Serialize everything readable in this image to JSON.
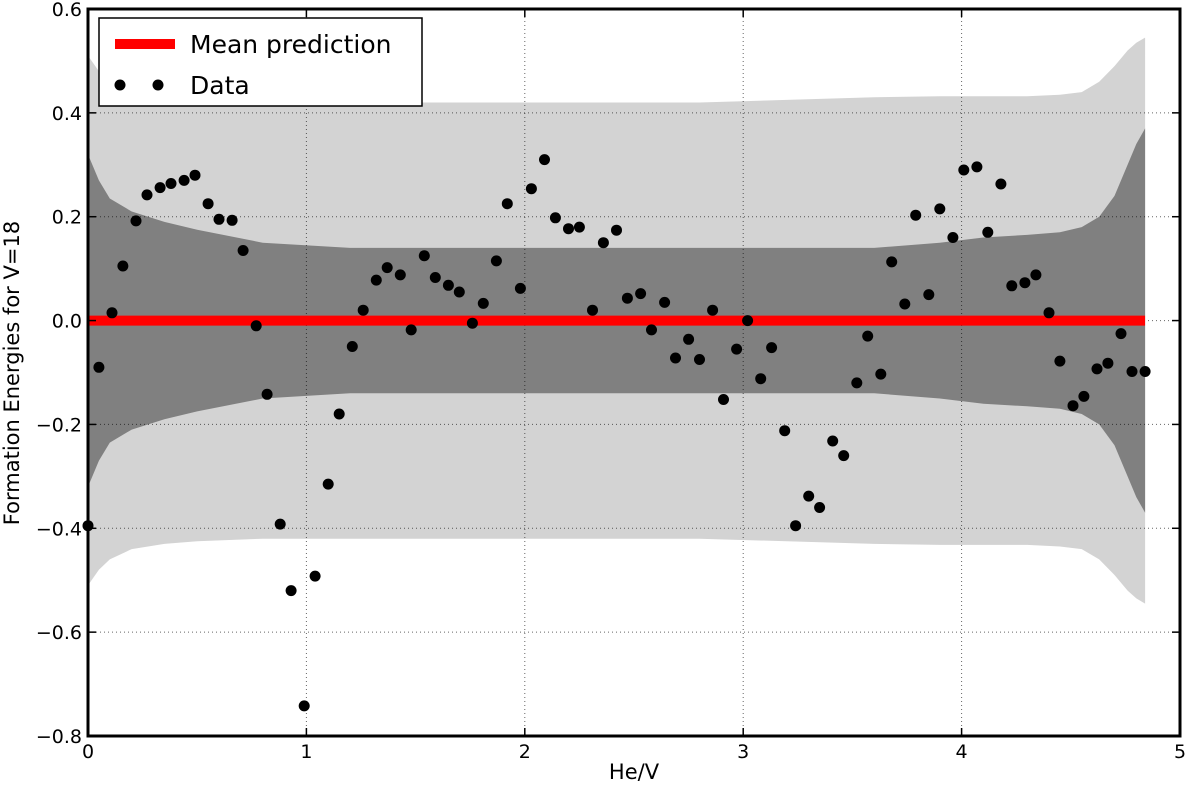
{
  "chart_data": {
    "type": "scatter",
    "title": "",
    "xlabel": "He/V",
    "ylabel": "Formation Energies for V=18",
    "xlim": [
      0,
      5
    ],
    "ylim": [
      -0.8,
      0.6
    ],
    "xticks": [
      0,
      1,
      2,
      3,
      4,
      5
    ],
    "yticks": [
      -0.8,
      -0.6,
      -0.4,
      -0.2,
      0.0,
      0.2,
      0.4,
      0.6
    ],
    "xtick_labels": [
      "0",
      "1",
      "2",
      "3",
      "4",
      "5"
    ],
    "ytick_labels": [
      "−0.8",
      "−0.6",
      "−0.4",
      "−0.2",
      "0.0",
      "0.2",
      "0.4",
      "0.6"
    ],
    "grid": true,
    "legend_position": "top-left",
    "colors": {
      "mean": "#ff0000",
      "data": "#000000",
      "band_inner": "#808080",
      "band_outer": "#d3d3d3"
    },
    "series": [
      {
        "name": "Mean prediction",
        "kind": "line",
        "x": [
          0,
          4.84
        ],
        "y": [
          0.0,
          0.0
        ]
      },
      {
        "name": "Data",
        "kind": "scatter",
        "x": [
          0.0,
          0.05,
          0.11,
          0.16,
          0.22,
          0.27,
          0.33,
          0.38,
          0.44,
          0.49,
          0.55,
          0.6,
          0.66,
          0.71,
          0.77,
          0.82,
          0.88,
          0.93,
          0.99,
          1.04,
          1.1,
          1.15,
          1.21,
          1.26,
          1.32,
          1.37,
          1.43,
          1.48,
          1.54,
          1.59,
          1.65,
          1.7,
          1.76,
          1.81,
          1.87,
          1.92,
          1.98,
          2.03,
          2.09,
          2.14,
          2.2,
          2.25,
          2.31,
          2.36,
          2.42,
          2.47,
          2.53,
          2.58,
          2.64,
          2.69,
          2.75,
          2.8,
          2.86,
          2.91,
          2.97,
          3.02,
          3.08,
          3.13,
          3.19,
          3.24,
          3.3,
          3.35,
          3.41,
          3.46,
          3.52,
          3.57,
          3.63,
          3.68,
          3.74,
          3.79,
          3.85,
          3.9,
          3.96,
          4.01,
          4.07,
          4.12,
          4.18,
          4.23,
          4.29,
          4.34,
          4.4,
          4.45,
          4.51,
          4.56,
          4.62,
          4.67,
          4.73,
          4.78,
          4.84
        ],
        "y": [
          -0.395,
          -0.09,
          0.015,
          0.105,
          0.192,
          0.242,
          0.256,
          0.264,
          0.27,
          0.28,
          0.225,
          0.195,
          0.193,
          0.135,
          -0.01,
          -0.142,
          -0.392,
          -0.52,
          -0.742,
          -0.492,
          -0.315,
          -0.18,
          -0.05,
          0.02,
          0.078,
          0.102,
          0.088,
          -0.018,
          0.125,
          0.083,
          0.068,
          0.055,
          -0.005,
          0.033,
          0.115,
          0.225,
          0.062,
          0.254,
          0.31,
          0.198,
          0.177,
          0.18,
          0.02,
          0.15,
          0.174,
          0.043,
          0.052,
          -0.018,
          0.035,
          -0.072,
          -0.036,
          -0.075,
          0.02,
          -0.152,
          -0.055,
          0.0,
          -0.112,
          -0.052,
          -0.212,
          -0.395,
          -0.338,
          -0.36,
          -0.232,
          -0.26,
          -0.12,
          -0.03,
          -0.103,
          0.113,
          0.032,
          0.203,
          0.05,
          0.215,
          0.16,
          0.29,
          0.296,
          0.17,
          0.263,
          0.067,
          0.073,
          0.088,
          0.015,
          -0.078,
          -0.164,
          -0.146,
          -0.093,
          -0.082,
          -0.025,
          -0.098,
          -0.098
        ]
      }
    ],
    "bands": {
      "x": [
        0.0,
        0.05,
        0.1,
        0.2,
        0.35,
        0.5,
        0.8,
        1.2,
        1.6,
        2.0,
        2.4,
        2.8,
        3.2,
        3.6,
        3.9,
        4.1,
        4.3,
        4.45,
        4.55,
        4.63,
        4.7,
        4.76,
        4.8,
        4.84
      ],
      "inner_upper": [
        0.32,
        0.27,
        0.235,
        0.21,
        0.19,
        0.175,
        0.15,
        0.14,
        0.14,
        0.14,
        0.14,
        0.14,
        0.14,
        0.14,
        0.15,
        0.16,
        0.165,
        0.17,
        0.18,
        0.2,
        0.24,
        0.3,
        0.34,
        0.37
      ],
      "inner_lower": [
        -0.32,
        -0.27,
        -0.235,
        -0.21,
        -0.19,
        -0.175,
        -0.15,
        -0.14,
        -0.14,
        -0.14,
        -0.14,
        -0.14,
        -0.14,
        -0.14,
        -0.15,
        -0.16,
        -0.165,
        -0.17,
        -0.18,
        -0.2,
        -0.24,
        -0.3,
        -0.34,
        -0.37
      ],
      "outer_upper": [
        0.51,
        0.48,
        0.46,
        0.44,
        0.43,
        0.425,
        0.42,
        0.42,
        0.42,
        0.42,
        0.42,
        0.42,
        0.425,
        0.43,
        0.432,
        0.432,
        0.432,
        0.435,
        0.44,
        0.46,
        0.49,
        0.52,
        0.535,
        0.545
      ],
      "outer_lower": [
        -0.51,
        -0.48,
        -0.46,
        -0.44,
        -0.43,
        -0.425,
        -0.42,
        -0.42,
        -0.42,
        -0.42,
        -0.42,
        -0.42,
        -0.425,
        -0.43,
        -0.432,
        -0.432,
        -0.432,
        -0.435,
        -0.44,
        -0.46,
        -0.49,
        -0.52,
        -0.535,
        -0.545
      ]
    }
  }
}
